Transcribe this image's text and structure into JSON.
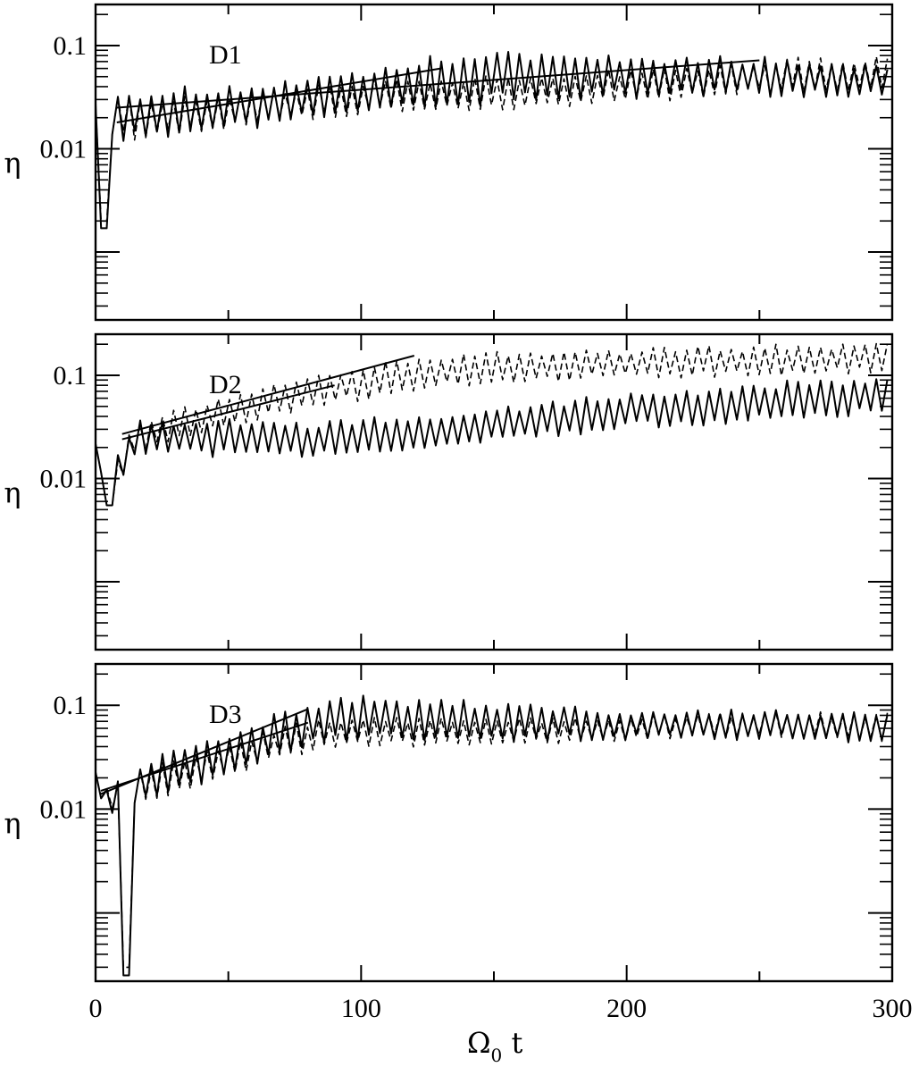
{
  "chart_data": {
    "type": "line",
    "xlabel_main": "Ω",
    "xlabel_sub": "0",
    "xlabel_tail": " t",
    "xlim": [
      0,
      300
    ],
    "x_ticks": [
      0,
      100,
      200,
      300
    ],
    "x_tick_labels": [
      "0",
      "100",
      "200",
      "300"
    ],
    "shared_x": true,
    "y_scale": "log",
    "panels": [
      {
        "label": "D1",
        "ylabel": "η",
        "ylim": [
          0.00022,
          0.25
        ],
        "y_ticks": [
          0.01,
          0.1
        ],
        "y_tick_labels": [
          "0.01",
          "0.1"
        ],
        "series": [
          {
            "style": "solid",
            "envelope": [
              [
                0,
                0.02
              ],
              [
                20,
                0.022
              ],
              [
                60,
                0.026
              ],
              [
                100,
                0.035
              ],
              [
                130,
                0.045
              ],
              [
                160,
                0.05
              ],
              [
                200,
                0.05
              ],
              [
                250,
                0.05
              ],
              [
                300,
                0.045
              ]
            ],
            "osc_amp": [
              [
                0,
                0.5
              ],
              [
                20,
                0.5
              ],
              [
                60,
                0.45
              ],
              [
                100,
                0.4
              ],
              [
                130,
                0.55
              ],
              [
                200,
                0.45
              ],
              [
                300,
                0.35
              ]
            ],
            "period": 4.2,
            "dip": {
              "x": 3,
              "y": 0.0017
            }
          },
          {
            "style": "dashed",
            "envelope": [
              [
                0,
                0.02
              ],
              [
                20,
                0.02
              ],
              [
                60,
                0.025
              ],
              [
                100,
                0.032
              ],
              [
                150,
                0.035
              ],
              [
                200,
                0.04
              ],
              [
                250,
                0.05
              ],
              [
                300,
                0.055
              ]
            ],
            "osc_amp": [
              [
                0,
                0.45
              ],
              [
                100,
                0.35
              ],
              [
                200,
                0.35
              ],
              [
                300,
                0.35
              ]
            ],
            "period": 4.2,
            "dip": {
              "x": 3,
              "y": 0.002
            }
          }
        ],
        "fits": [
          {
            "x": [
              8,
              250
            ],
            "y": [
              0.025,
              0.072
            ]
          },
          {
            "x": [
              8,
              130
            ],
            "y": [
              0.018,
              0.06
            ]
          }
        ]
      },
      {
        "label": "D2",
        "ylabel": "η",
        "ylim": [
          0.00022,
          0.25
        ],
        "y_ticks": [
          0.01,
          0.1
        ],
        "y_tick_labels": [
          "0.01",
          "0.1"
        ],
        "series": [
          {
            "style": "solid",
            "envelope": [
              [
                0,
                0.018
              ],
              [
                6,
                0.009
              ],
              [
                15,
                0.025
              ],
              [
                40,
                0.025
              ],
              [
                80,
                0.024
              ],
              [
                120,
                0.028
              ],
              [
                160,
                0.035
              ],
              [
                200,
                0.045
              ],
              [
                250,
                0.055
              ],
              [
                300,
                0.065
              ]
            ],
            "osc_amp": [
              [
                0,
                0.3
              ],
              [
                15,
                0.4
              ],
              [
                100,
                0.35
              ],
              [
                300,
                0.4
              ]
            ],
            "period": 4.2,
            "dip": {
              "x": 5,
              "y": 0.0055
            }
          },
          {
            "style": "dashed",
            "envelope": [
              [
                0,
                0.018
              ],
              [
                6,
                0.009
              ],
              [
                15,
                0.025
              ],
              [
                50,
                0.045
              ],
              [
                100,
                0.085
              ],
              [
                130,
                0.11
              ],
              [
                200,
                0.13
              ],
              [
                250,
                0.14
              ],
              [
                300,
                0.15
              ]
            ],
            "osc_amp": [
              [
                0,
                0.3
              ],
              [
                15,
                0.35
              ],
              [
                100,
                0.35
              ],
              [
                300,
                0.3
              ]
            ],
            "period": 4.2,
            "dip": {
              "x": 5,
              "y": 0.0055
            }
          }
        ],
        "fits": [
          {
            "x": [
              10,
              120
            ],
            "y": [
              0.027,
              0.155
            ]
          },
          {
            "x": [
              10,
              90
            ],
            "y": [
              0.024,
              0.08
            ]
          }
        ]
      },
      {
        "label": "D3",
        "ylabel": "η",
        "ylim": [
          0.00022,
          0.25
        ],
        "y_ticks": [
          0.01,
          0.1
        ],
        "y_tick_labels": [
          "0.01",
          "0.1"
        ],
        "series": [
          {
            "style": "solid",
            "envelope": [
              [
                0,
                0.02
              ],
              [
                5,
                0.012
              ],
              [
                20,
                0.02
              ],
              [
                50,
                0.035
              ],
              [
                80,
                0.065
              ],
              [
                100,
                0.075
              ],
              [
                150,
                0.07
              ],
              [
                200,
                0.065
              ],
              [
                250,
                0.065
              ],
              [
                300,
                0.06
              ]
            ],
            "osc_amp": [
              [
                0,
                0.2
              ],
              [
                20,
                0.45
              ],
              [
                90,
                0.45
              ],
              [
                160,
                0.4
              ],
              [
                200,
                0.3
              ],
              [
                300,
                0.3
              ]
            ],
            "period": 4.2,
            "dip": {
              "x": 12,
              "y": 0.00025
            }
          },
          {
            "style": "dashed",
            "envelope": [
              [
                0,
                0.02
              ],
              [
                5,
                0.012
              ],
              [
                20,
                0.018
              ],
              [
                50,
                0.03
              ],
              [
                80,
                0.05
              ],
              [
                100,
                0.055
              ],
              [
                150,
                0.055
              ],
              [
                200,
                0.06
              ],
              [
                250,
                0.065
              ],
              [
                300,
                0.06
              ]
            ],
            "osc_amp": [
              [
                0,
                0.2
              ],
              [
                20,
                0.4
              ],
              [
                100,
                0.3
              ],
              [
                200,
                0.25
              ],
              [
                300,
                0.3
              ]
            ],
            "period": 4.2,
            "dip": {
              "x": 12,
              "y": 0.0003
            }
          }
        ],
        "fits": [
          {
            "x": [
              2,
              80
            ],
            "y": [
              0.014,
              0.092
            ]
          },
          {
            "x": [
              2,
              80
            ],
            "y": [
              0.015,
              0.068
            ]
          }
        ]
      }
    ]
  }
}
